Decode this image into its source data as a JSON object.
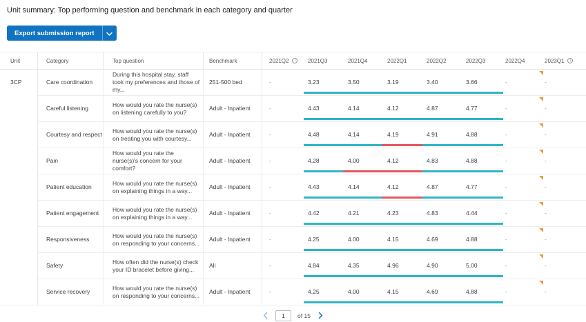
{
  "title": "Unit summary: Top performing question and benchmark in each category and quarter",
  "export_button": {
    "label": "Export submission report",
    "dropdown_icon": "chevron-down-icon"
  },
  "colors": {
    "accent_blue": "#1173C1",
    "bar_teal": "#2FB4C4",
    "bar_red": "#E4555E",
    "flag_orange": "#E89B3C"
  },
  "table": {
    "columns": [
      {
        "label": "Unit",
        "info": false
      },
      {
        "label": "Category",
        "info": false
      },
      {
        "label": "Top question",
        "info": false
      },
      {
        "label": "Benchmark",
        "info": false
      },
      {
        "label": "2021Q2",
        "info": true
      },
      {
        "label": "2021Q3",
        "info": false
      },
      {
        "label": "2021Q4",
        "info": false
      },
      {
        "label": "2022Q1",
        "info": false
      },
      {
        "label": "2022Q2",
        "info": false
      },
      {
        "label": "2022Q3",
        "info": false
      },
      {
        "label": "2022Q4",
        "info": false
      },
      {
        "label": "2023Q1",
        "info": true
      }
    ],
    "unit": "3CP",
    "rows": [
      {
        "category": "Care coordination",
        "question": "During this hospital stay, staff took my preferences and those of my...",
        "benchmark": "251-500 bed",
        "values": [
          "-",
          "3.23",
          "3.50",
          "3.19",
          "3.40",
          "3.66",
          "-",
          "-"
        ],
        "bar": {
          "span": "2021Q3-2022Q3",
          "red": null
        },
        "flag": true
      },
      {
        "category": "Careful listening",
        "question": "How would you rate the nurse(s) on listening carefully to you?",
        "benchmark": "Adult - Inpatient",
        "values": [
          "-",
          "4.43",
          "4.14",
          "4.12",
          "4.87",
          "4.77",
          "-",
          "-"
        ],
        "bar": {
          "span": "2021Q3-2022Q3",
          "red": null
        },
        "flag": true
      },
      {
        "category": "Courtesy and respect",
        "question": "How would you rate the nurse(s) on treating you with courtesy...",
        "benchmark": "Adult - Inpatient",
        "values": [
          "-",
          "4.48",
          "4.14",
          "4.19",
          "4.91",
          "4.88",
          "-",
          "-"
        ],
        "bar": {
          "span": "2021Q3-2022Q3",
          "red": {
            "quarters": "2022Q1",
            "left_pct": 39.1,
            "width_pct": 20.4
          }
        },
        "flag": true
      },
      {
        "category": "Pain",
        "question": "How would you rate the nurse(s)'s concern for your comfort?",
        "benchmark": "Adult - Inpatient",
        "values": [
          "-",
          "4.28",
          "4.00",
          "4.12",
          "4.83",
          "4.88",
          "-",
          "-"
        ],
        "bar": {
          "span": "2021Q3-2022Q3",
          "red": {
            "quarters": "2021Q4-2022Q1",
            "left_pct": 19.7,
            "width_pct": 39.8
          }
        },
        "flag": true
      },
      {
        "category": "Patient education",
        "question": "How would you rate the nurse(s) on explaining things in a way...",
        "benchmark": "Adult - Inpatient",
        "values": [
          "-",
          "4.43",
          "4.14",
          "4.12",
          "4.87",
          "4.77",
          "-",
          "-"
        ],
        "bar": {
          "span": "2021Q3-2022Q3",
          "red": {
            "quarters": "2022Q1",
            "left_pct": 39.1,
            "width_pct": 20.4
          }
        },
        "flag": true
      },
      {
        "category": "Patient engagement",
        "question": "How would you rate the nurse(s) on explaining things in a way...",
        "benchmark": "Adult - Inpatient",
        "values": [
          "-",
          "4.42",
          "4.21",
          "4.23",
          "4.83",
          "4.44",
          "-",
          "-"
        ],
        "bar": {
          "span": "2021Q3-2022Q3",
          "red": null
        },
        "flag": true
      },
      {
        "category": "Responsiveness",
        "question": "How would you rate the nurse(s) on responding to your concerns...",
        "benchmark": "Adult - Inpatient",
        "values": [
          "-",
          "4.25",
          "4.00",
          "4.15",
          "4.69",
          "4.88",
          "-",
          "-"
        ],
        "bar": {
          "span": "2021Q3-2022Q3",
          "red": null
        },
        "flag": true
      },
      {
        "category": "Safety",
        "question": "How often did the nurse(s) check your ID bracelet before giving...",
        "benchmark": "All",
        "values": [
          "-",
          "4.84",
          "4.35",
          "4.96",
          "4.90",
          "5.00",
          "-",
          "-"
        ],
        "bar": {
          "span": "2021Q3-2022Q3",
          "red": null
        },
        "flag": true
      },
      {
        "category": "Service recovery",
        "question": "How would you rate the nurse(s) on responding to your concerns...",
        "benchmark": "Adult - Inpatient",
        "values": [
          "-",
          "4.25",
          "4.00",
          "4.15",
          "4.69",
          "4.88",
          "-",
          "-"
        ],
        "bar": {
          "span": "2021Q3-2022Q3",
          "red": null
        },
        "flag": true
      }
    ]
  },
  "pagination": {
    "prev_icon": "chevron-left-icon",
    "current_page": "1",
    "total_label": "of 15",
    "next_icon": "chevron-right-icon"
  }
}
